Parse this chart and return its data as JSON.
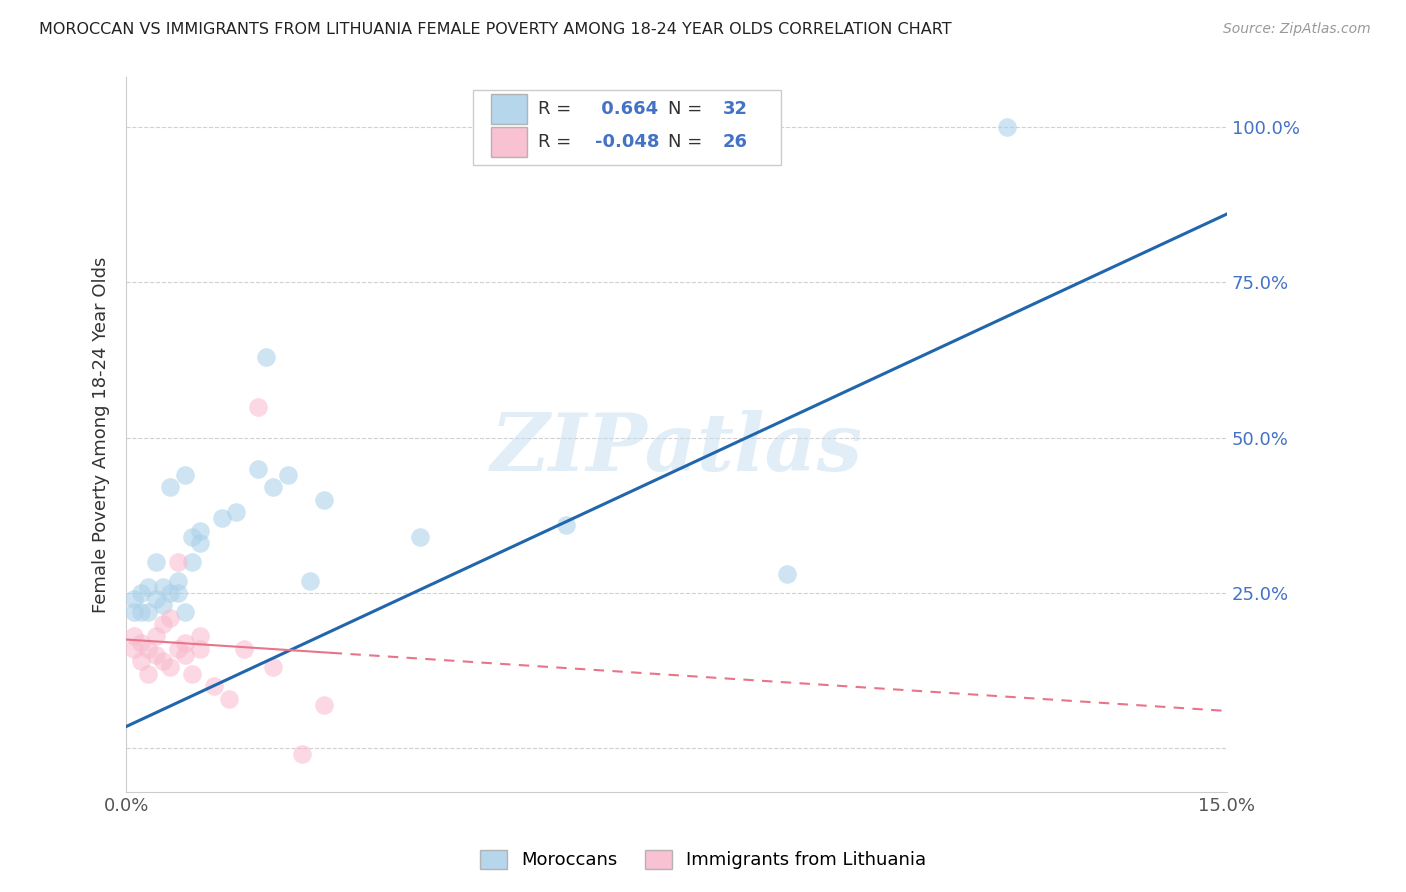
{
  "title": "MOROCCAN VS IMMIGRANTS FROM LITHUANIA FEMALE POVERTY AMONG 18-24 YEAR OLDS CORRELATION CHART",
  "source": "Source: ZipAtlas.com",
  "ylabel": "Female Poverty Among 18-24 Year Olds",
  "watermark": "ZIPatlas",
  "xlim": [
    0.0,
    0.15
  ],
  "ylim": [
    -0.07,
    1.08
  ],
  "blue_R": 0.664,
  "blue_N": 32,
  "pink_R": -0.048,
  "pink_N": 26,
  "blue_color": "#a8cfe8",
  "pink_color": "#f9b8cc",
  "blue_line_color": "#2166ac",
  "pink_line_color": "#e8748a",
  "moroccan_x": [
    0.001,
    0.001,
    0.002,
    0.002,
    0.003,
    0.003,
    0.004,
    0.004,
    0.005,
    0.005,
    0.006,
    0.006,
    0.007,
    0.007,
    0.008,
    0.008,
    0.009,
    0.009,
    0.01,
    0.01,
    0.013,
    0.015,
    0.018,
    0.019,
    0.02,
    0.022,
    0.025,
    0.027,
    0.04,
    0.06,
    0.09,
    0.12
  ],
  "moroccan_y": [
    0.24,
    0.22,
    0.25,
    0.22,
    0.26,
    0.22,
    0.24,
    0.3,
    0.26,
    0.23,
    0.25,
    0.42,
    0.25,
    0.27,
    0.22,
    0.44,
    0.3,
    0.34,
    0.33,
    0.35,
    0.37,
    0.38,
    0.45,
    0.63,
    0.42,
    0.44,
    0.27,
    0.4,
    0.34,
    0.36,
    0.28,
    1.0
  ],
  "lithuania_x": [
    0.001,
    0.001,
    0.002,
    0.002,
    0.003,
    0.003,
    0.004,
    0.004,
    0.005,
    0.005,
    0.006,
    0.006,
    0.007,
    0.007,
    0.008,
    0.008,
    0.009,
    0.01,
    0.01,
    0.012,
    0.014,
    0.016,
    0.018,
    0.02,
    0.024,
    0.027
  ],
  "lithuania_y": [
    0.18,
    0.16,
    0.17,
    0.14,
    0.16,
    0.12,
    0.15,
    0.18,
    0.14,
    0.2,
    0.13,
    0.21,
    0.16,
    0.3,
    0.15,
    0.17,
    0.12,
    0.18,
    0.16,
    0.1,
    0.08,
    0.16,
    0.55,
    0.13,
    -0.01,
    0.07
  ],
  "blue_line_x0": 0.0,
  "blue_line_y0": 0.035,
  "blue_line_x1": 0.15,
  "blue_line_y1": 0.86,
  "pink_line_x0": 0.0,
  "pink_line_y0": 0.175,
  "pink_line_x1": 0.15,
  "pink_line_y1": 0.06
}
